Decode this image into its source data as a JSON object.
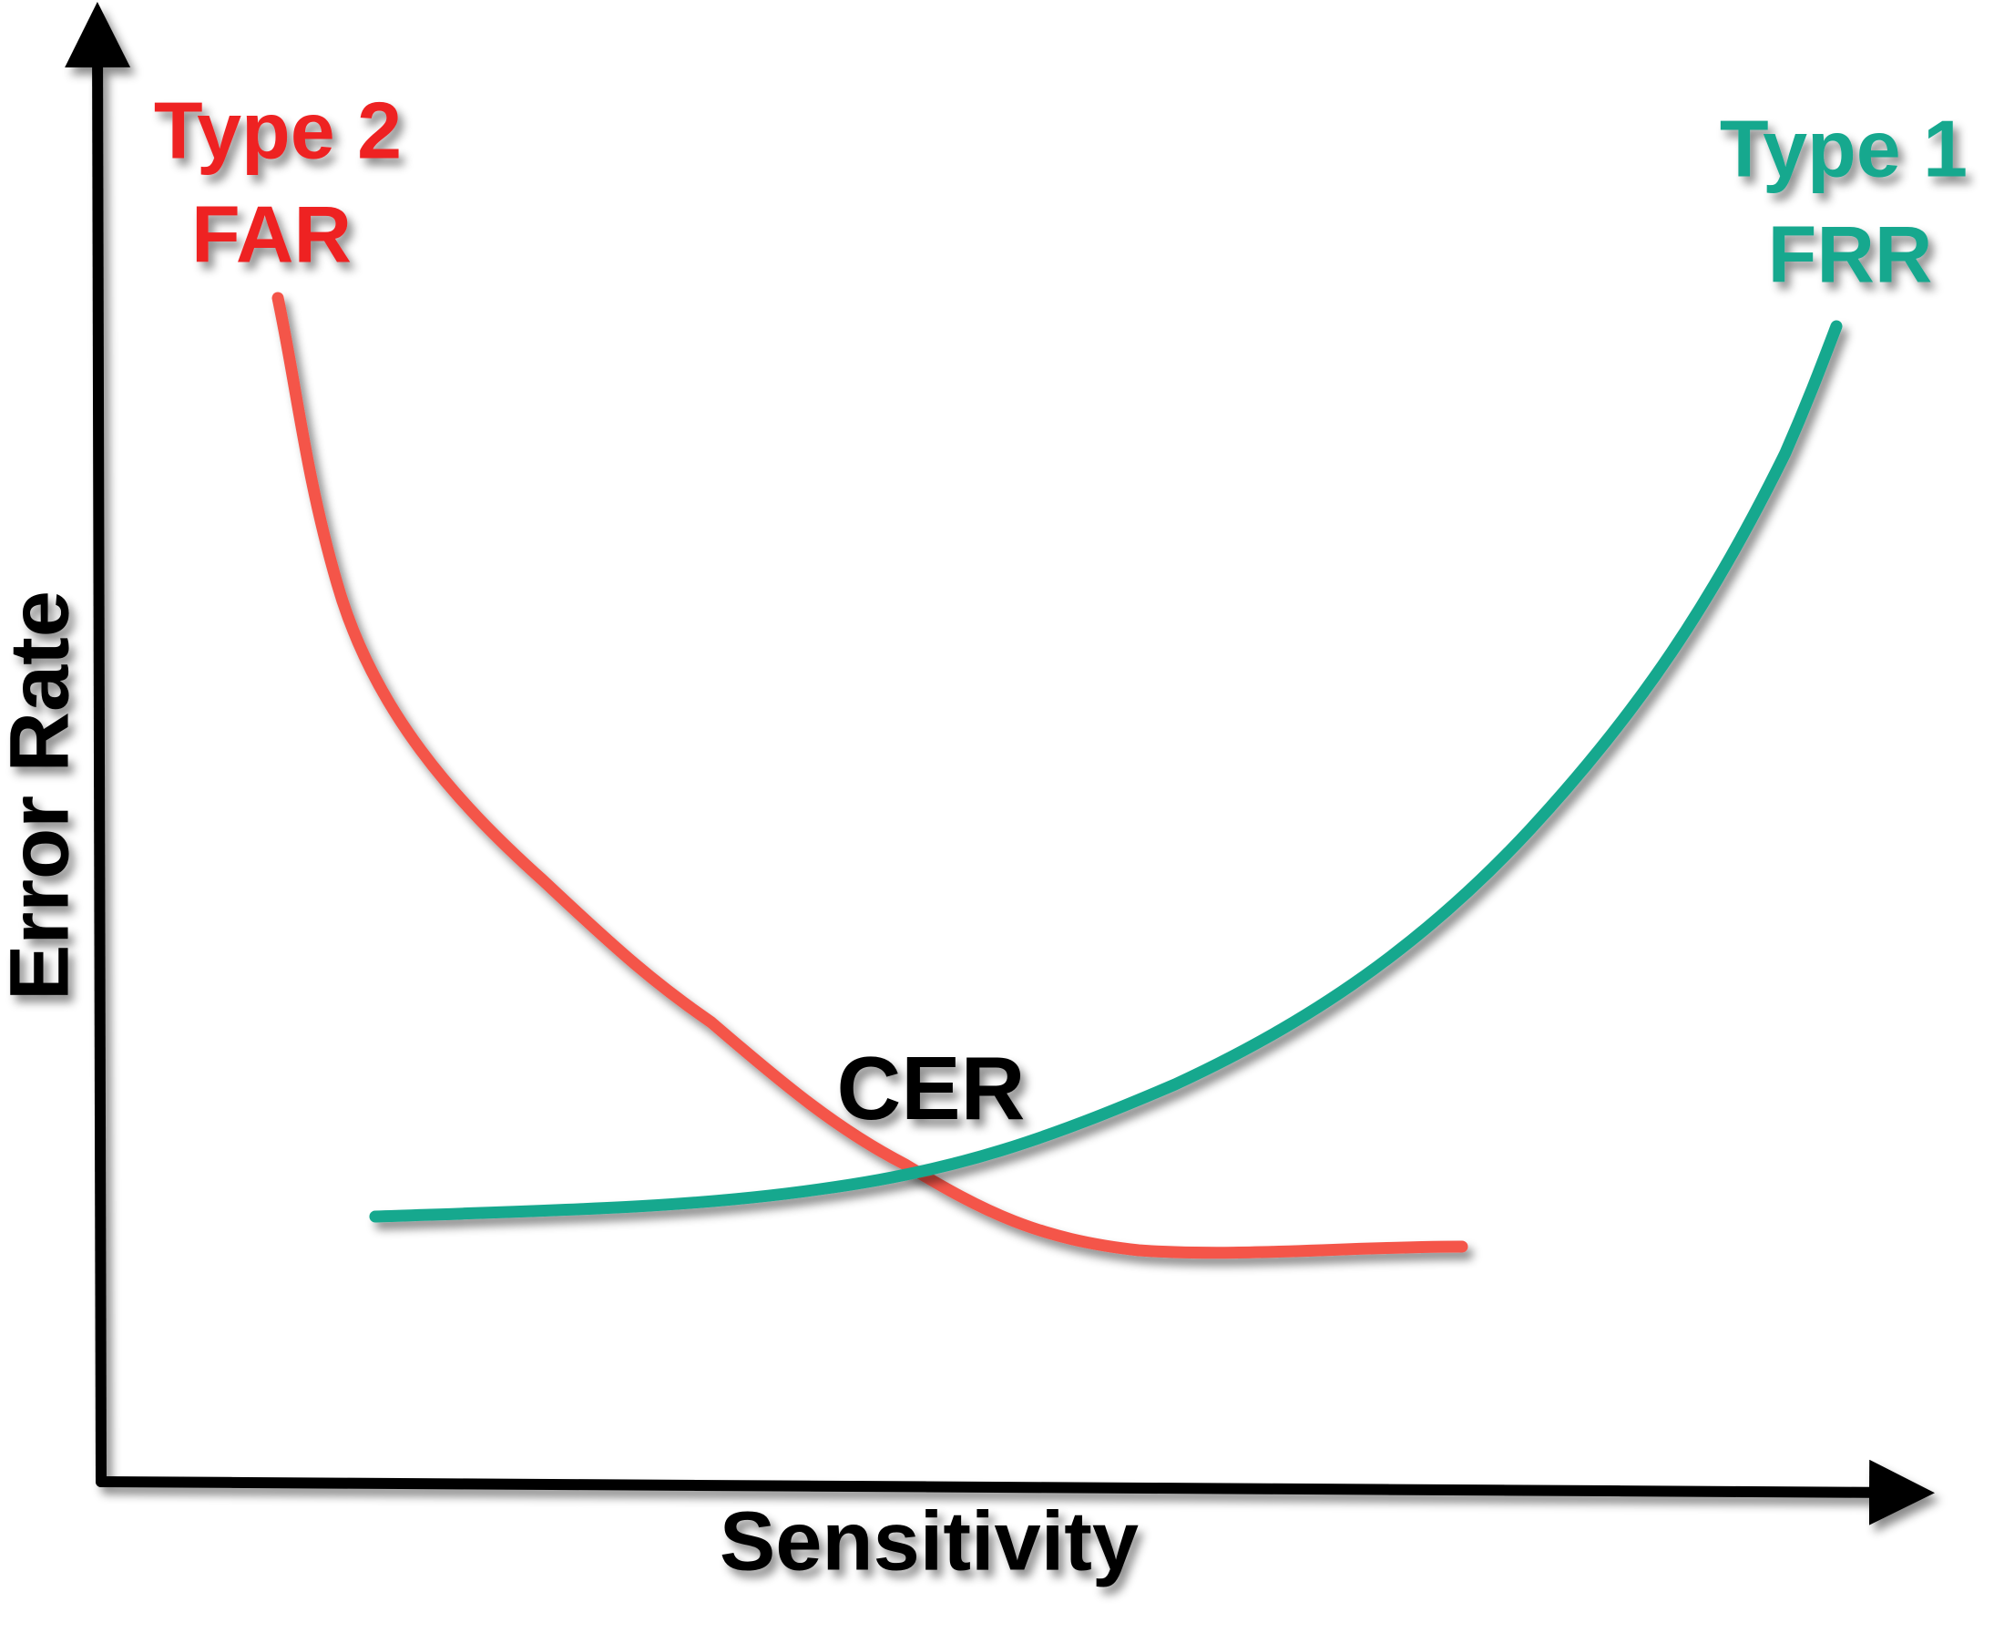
{
  "y_axis_label": "Error Rate",
  "x_axis_label": "Sensitivity",
  "type2": {
    "line1": "Type 2",
    "line2": "FAR"
  },
  "type1": {
    "line1": "Type 1",
    "line2": "FRR"
  },
  "crossover": "CER"
}
